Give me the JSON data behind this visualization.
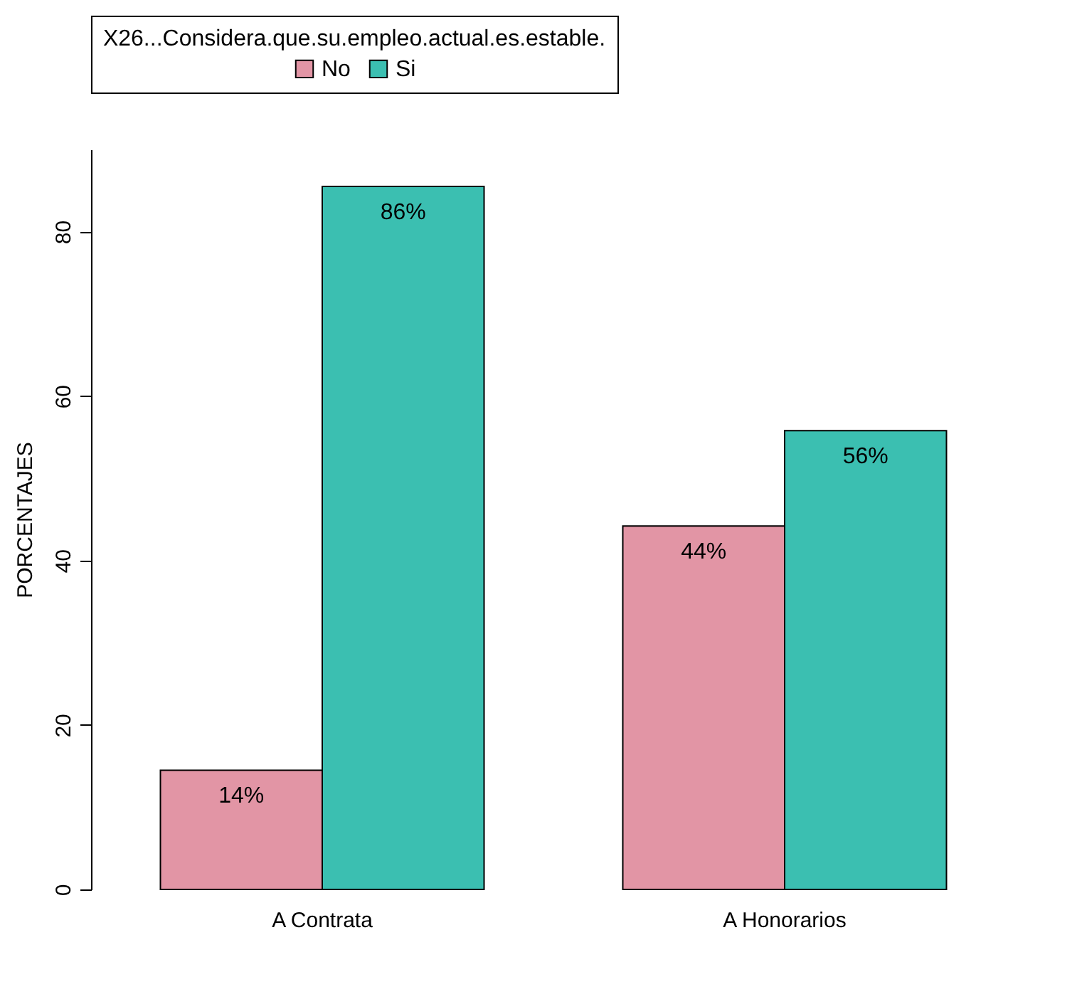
{
  "chart_data": {
    "type": "bar",
    "ylabel": "PORCENTAJES",
    "legend_title": "X26...Considera.que.su.empleo.actual.es.estable.",
    "categories": [
      "A Contrata",
      "A Honorarios"
    ],
    "series": [
      {
        "name": "No",
        "color": "#e295a5",
        "values": [
          14.5,
          44.2
        ],
        "value_labels": [
          "14%",
          "44%"
        ]
      },
      {
        "name": "Si",
        "color": "#3bbfb1",
        "values": [
          85.5,
          55.8
        ],
        "value_labels": [
          "86%",
          "56%"
        ]
      }
    ],
    "ylim": [
      0,
      90
    ],
    "yticks": [
      0,
      20,
      40,
      60,
      80
    ],
    "legend": "top",
    "grid": false
  }
}
